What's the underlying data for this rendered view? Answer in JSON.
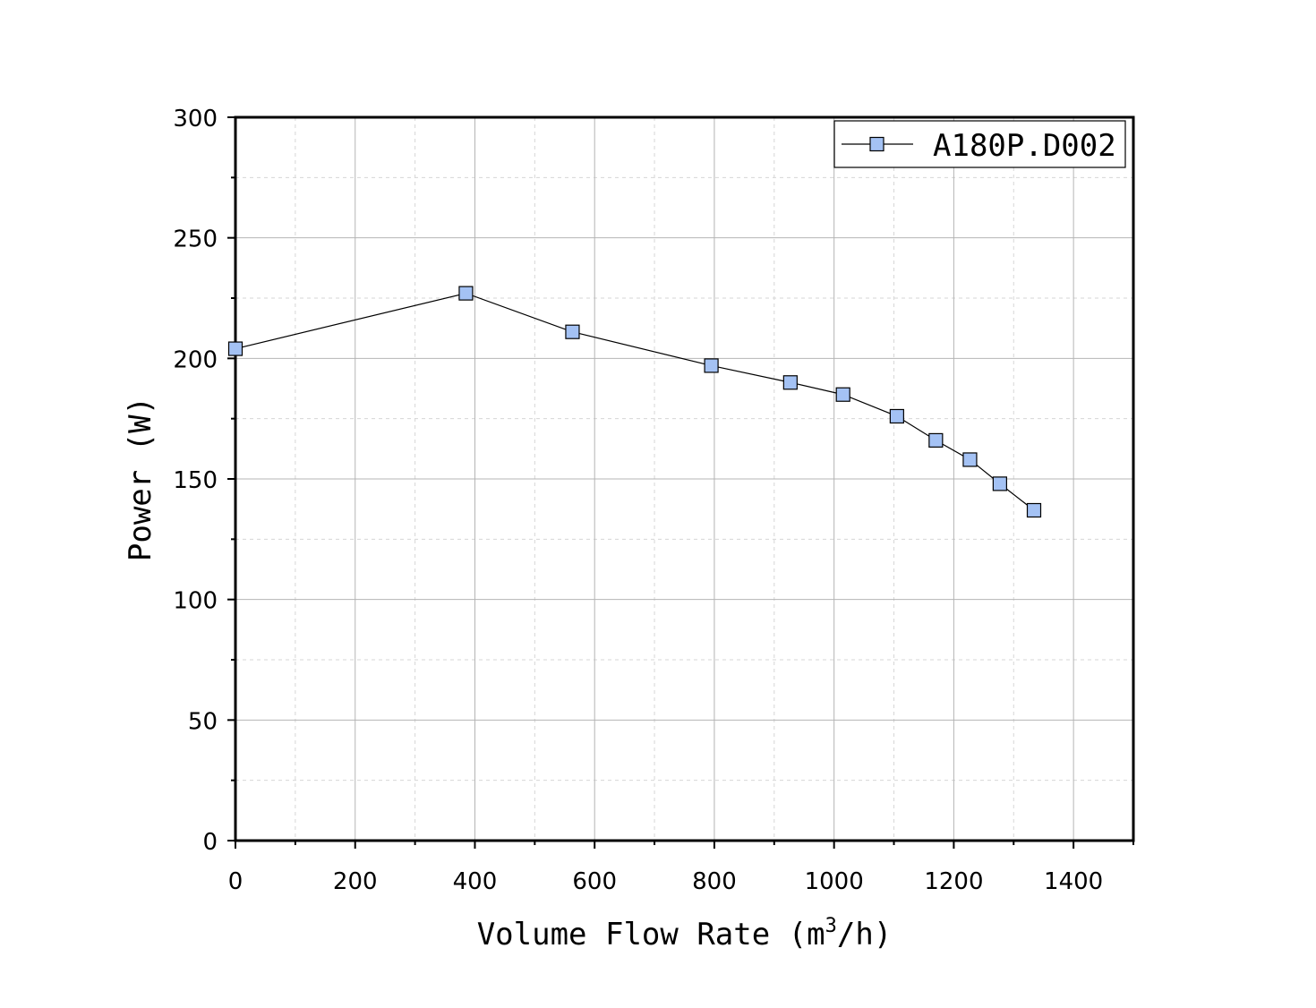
{
  "chart_data": {
    "type": "line",
    "title": "",
    "xlabel": {
      "prefix": "Volume Flow Rate (m",
      "sup": "3",
      "suffix": "/h)"
    },
    "ylabel": "Power (W)",
    "xlim": [
      0,
      1500
    ],
    "ylim": [
      0,
      300
    ],
    "xticks": [
      0,
      200,
      400,
      600,
      800,
      1000,
      1200,
      1400
    ],
    "yticks": [
      0,
      50,
      100,
      150,
      200,
      250,
      300
    ],
    "grid": true,
    "legend_position": "top-right",
    "series": [
      {
        "name": "A180P.D002",
        "marker": "square",
        "marker_color": "#a4c2f4",
        "line_color": "#000000",
        "x": [
          0,
          385,
          563,
          795,
          927,
          1015,
          1105,
          1170,
          1227,
          1277,
          1334
        ],
        "y": [
          204,
          227,
          211,
          197,
          190,
          185,
          176,
          166,
          158,
          148,
          137
        ]
      }
    ]
  }
}
